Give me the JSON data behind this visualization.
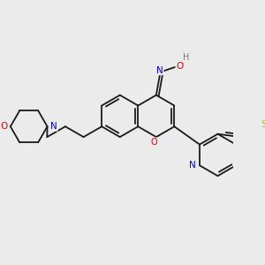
{
  "background_color": "#ebebeb",
  "bond_color": "#1a1a1a",
  "atom_colors": {
    "N": "#0000ee",
    "O": "#ee0000",
    "S": "#bbbb00",
    "H": "#777777",
    "C": "#1a1a1a"
  },
  "figsize": [
    3.0,
    3.0
  ],
  "dpi": 100
}
